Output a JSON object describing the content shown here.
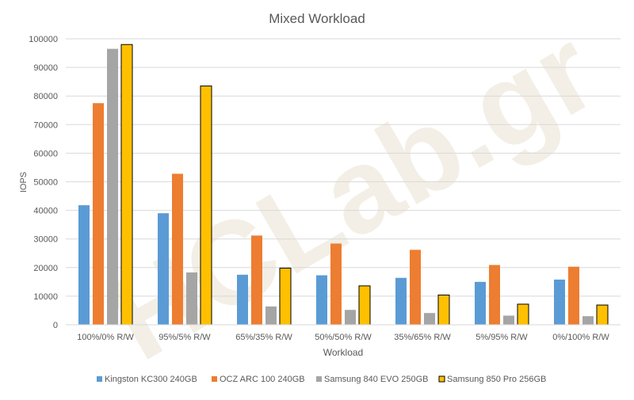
{
  "chart_data": {
    "type": "bar",
    "title": "Mixed Workload",
    "xlabel": "Workload",
    "ylabel": "IOPS",
    "ylim": [
      0,
      100000
    ],
    "yticks": [
      0,
      10000,
      20000,
      30000,
      40000,
      50000,
      60000,
      70000,
      80000,
      90000,
      100000
    ],
    "grid": true,
    "legend_position": "bottom",
    "watermark": "HCLab.gr",
    "categories": [
      "100%/0% R/W",
      "95%/5% R/W",
      "65%/35% R/W",
      "50%/50% R/W",
      "35%/65% R/W",
      "5%/95% R/W",
      "0%/100% R/W"
    ],
    "series": [
      {
        "name": "Kingston KC300 240GB",
        "color": "#5b9bd5",
        "outlined": false,
        "values": [
          41800,
          39000,
          17500,
          17300,
          16400,
          15000,
          15800
        ]
      },
      {
        "name": "OCZ ARC 100 240GB",
        "color": "#ed7d31",
        "outlined": false,
        "values": [
          77500,
          52800,
          31200,
          28400,
          26200,
          20900,
          20300
        ]
      },
      {
        "name": "Samsung 840 EVO 250GB",
        "color": "#a5a5a5",
        "outlined": false,
        "values": [
          96500,
          18300,
          6400,
          5200,
          4100,
          3200,
          3000
        ]
      },
      {
        "name": "Samsung 850 Pro 256GB",
        "color": "#ffc000",
        "outlined": true,
        "values": [
          98000,
          83500,
          19800,
          13600,
          10400,
          7200,
          6900
        ]
      }
    ]
  }
}
